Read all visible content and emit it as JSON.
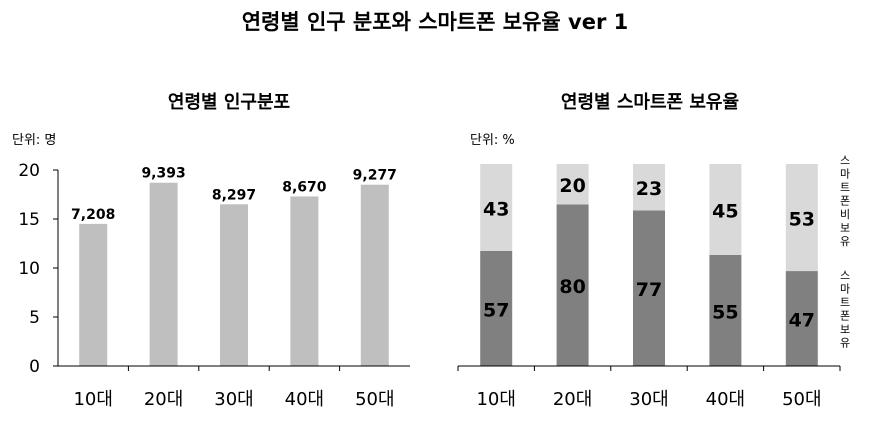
{
  "title": "연령별 인구 분포와 스마트폰 보유율 ver 1",
  "chart_data": [
    {
      "type": "bar",
      "title": "연령별 인구분포",
      "unit_label": "단위: 명",
      "categories": [
        "10대",
        "20대",
        "30대",
        "40대",
        "50대"
      ],
      "values": [
        14.5,
        18.7,
        16.5,
        17.3,
        18.5
      ],
      "data_labels": [
        "7,208",
        "9,393",
        "8,297",
        "8,670",
        "9,277"
      ],
      "ylim": [
        0,
        20
      ],
      "yticks": [
        "0",
        "5",
        "10",
        "15",
        "20"
      ],
      "bar_color": "#bfbfbf",
      "grid": false
    },
    {
      "type": "bar",
      "stacked": true,
      "title": "연령별 스마트폰 보유율",
      "unit_label": "단위: %",
      "categories": [
        "10대",
        "20대",
        "30대",
        "40대",
        "50대"
      ],
      "ylim": [
        0,
        100
      ],
      "series": [
        {
          "name": "스마트폰보유",
          "values": [
            57,
            80,
            77,
            55,
            47
          ],
          "color": "#808080"
        },
        {
          "name": "스마트폰비보유",
          "values": [
            43,
            20,
            23,
            45,
            53
          ],
          "color": "#d9d9d9"
        }
      ],
      "legend_position": "right"
    }
  ]
}
